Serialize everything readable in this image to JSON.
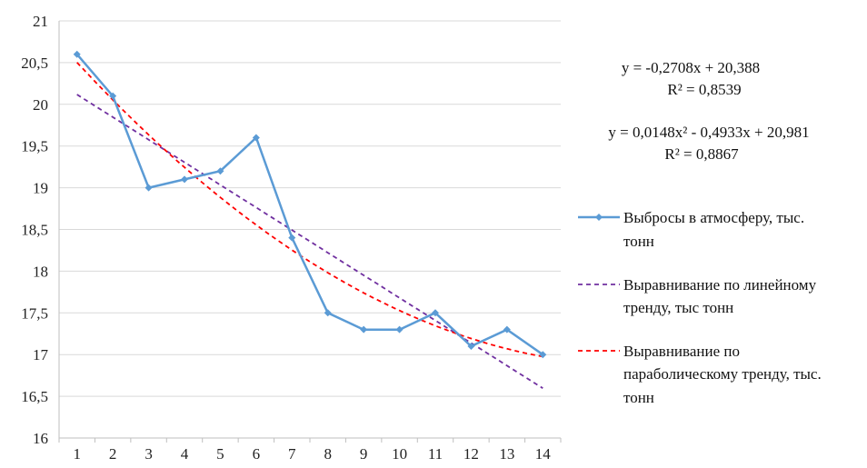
{
  "chart_data": {
    "type": "line",
    "x": [
      1,
      2,
      3,
      4,
      5,
      6,
      7,
      8,
      9,
      10,
      11,
      12,
      13,
      14
    ],
    "xticks": [
      "1",
      "2",
      "3",
      "4",
      "5",
      "6",
      "7",
      "8",
      "9",
      "10",
      "11",
      "12",
      "13",
      "14"
    ],
    "ylim": [
      16,
      21
    ],
    "yticks": [
      "16",
      "16,5",
      "17",
      "17,5",
      "18",
      "18,5",
      "19",
      "19,5",
      "20",
      "20,5",
      "21"
    ],
    "grid": true,
    "legend_position": "right",
    "series": [
      {
        "name_lines": [
          "Выбросы в атмосферу, тыс.",
          "тонн"
        ],
        "style": "solid-markers",
        "color": "#5b9bd5",
        "values": [
          20.6,
          20.1,
          19.0,
          19.1,
          19.2,
          19.6,
          18.4,
          17.5,
          17.3,
          17.3,
          17.5,
          17.1,
          17.3,
          17.0
        ]
      },
      {
        "name_lines": [
          "Выравнивание по линейному",
          "тренду, тыс тонн"
        ],
        "style": "dashed",
        "color": "#7030a0",
        "trend": "linear",
        "coefficients": [
          -0.2708,
          20.388
        ]
      },
      {
        "name_lines": [
          "Выравнивание по",
          "параболическому тренду, тыс.",
          "тонн"
        ],
        "style": "dashed",
        "color": "#ff0000",
        "trend": "poly2",
        "coefficients": [
          0.0148,
          -0.4933,
          20.981
        ]
      }
    ],
    "annotations": {
      "linear_equation": "y = -0,2708x + 20,388",
      "linear_r2": "R² = 0,8539",
      "poly_equation": "y = 0,0148x² - 0,4933x + 20,981",
      "poly_r2": "R² = 0,8867"
    }
  }
}
